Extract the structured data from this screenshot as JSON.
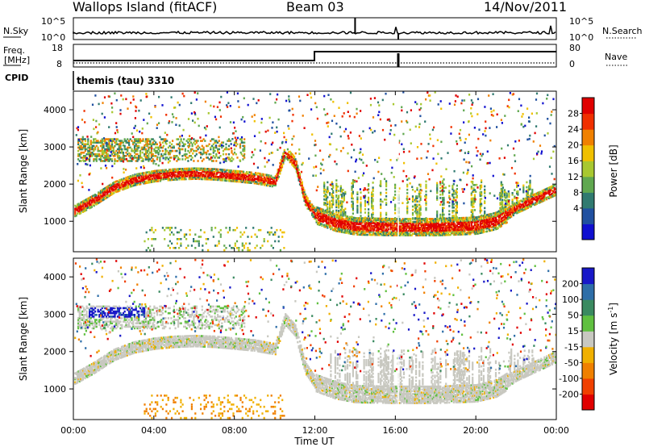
{
  "header": {
    "station": "Wallops Island (fitACF)",
    "beam": "Beam 03",
    "date": "14/Nov/2011"
  },
  "noise_panel": {
    "left_label": "N.Sky",
    "right_label": "N.Search",
    "left_ticks": [
      "10^5",
      "10^0"
    ],
    "right_ticks": [
      "10^5",
      "10^0"
    ]
  },
  "freq_panel": {
    "left_label_top": "Freq.",
    "left_label_bottom": "[MHz]",
    "right_label": "Nave",
    "left_ticks": [
      "18",
      "8"
    ],
    "right_ticks": [
      "80",
      "0"
    ]
  },
  "cpid": {
    "label": "CPID",
    "value": "themis (tau) 3310"
  },
  "power_panel": {
    "ylabel": "Slant Range [km]",
    "colorbar_label": "Power [dB]",
    "colorbar_ticks": [
      "28",
      "24",
      "20",
      "16",
      "12",
      "8",
      "4"
    ],
    "colors": [
      "#1010d0",
      "#2050a0",
      "#307a70",
      "#60a850",
      "#a8c830",
      "#f0c000",
      "#f08000",
      "#f03000",
      "#e00000"
    ]
  },
  "velocity_panel": {
    "ylabel": "Slant Range [km]",
    "colorbar_label": "Velocity [m s",
    "colorbar_label_sup": "-1",
    "colorbar_label_end": "]",
    "colorbar_ticks": [
      "200",
      "100",
      "50",
      "15",
      "-15",
      "-50",
      "-100",
      "-200"
    ],
    "colors": [
      "#1818c8",
      "#2e6ea8",
      "#3a8a60",
      "#60c040",
      "#c8c8c0",
      "#f0b000",
      "#f08000",
      "#f04000",
      "#e00000"
    ]
  },
  "xaxis": {
    "label": "Time UT",
    "ticks": [
      "00:00",
      "04:00",
      "08:00",
      "12:00",
      "16:00",
      "20:00",
      "00:00"
    ]
  },
  "chart_data": {
    "type": "heatmap",
    "x_range_hours": [
      0,
      24
    ],
    "y_range_km": [
      180,
      4500
    ],
    "y_ticks": [
      1000,
      2000,
      3000,
      4000
    ],
    "nave_step": [
      {
        "t_start": 0,
        "t_end": 12,
        "level": "low"
      },
      {
        "t_start": 12,
        "t_end": 24,
        "level": "high"
      }
    ],
    "freq_step": [
      {
        "t_start": 0,
        "t_end": 12,
        "level": "low"
      },
      {
        "t_start": 12,
        "t_end": 24,
        "level": "high"
      }
    ],
    "main_backscatter_band": [
      {
        "t": 0.0,
        "range_km": 1300
      },
      {
        "t": 1.0,
        "range_km": 1600
      },
      {
        "t": 2.0,
        "range_km": 1950
      },
      {
        "t": 3.0,
        "range_km": 2150
      },
      {
        "t": 4.0,
        "range_km": 2250
      },
      {
        "t": 5.0,
        "range_km": 2300
      },
      {
        "t": 6.0,
        "range_km": 2320
      },
      {
        "t": 7.0,
        "range_km": 2300
      },
      {
        "t": 8.0,
        "range_km": 2250
      },
      {
        "t": 9.0,
        "range_km": 2200
      },
      {
        "t": 10.0,
        "range_km": 2100
      },
      {
        "t": 10.5,
        "range_km": 2900
      },
      {
        "t": 11.0,
        "range_km": 2600
      },
      {
        "t": 11.5,
        "range_km": 1600
      },
      {
        "t": 12.0,
        "range_km": 1200
      },
      {
        "t": 13.0,
        "range_km": 1000
      },
      {
        "t": 14.0,
        "range_km": 900
      },
      {
        "t": 16.0,
        "range_km": 880
      },
      {
        "t": 18.0,
        "range_km": 880
      },
      {
        "t": 20.0,
        "range_km": 920
      },
      {
        "t": 21.0,
        "range_km": 1050
      },
      {
        "t": 22.0,
        "range_km": 1400
      },
      {
        "t": 23.0,
        "range_km": 1650
      },
      {
        "t": 24.0,
        "range_km": 1900
      }
    ],
    "velocity_blue_patch": {
      "t_start": 0.7,
      "t_end": 3.5,
      "range_km": [
        2950,
        3200
      ],
      "velocity": "100 to 200"
    }
  }
}
